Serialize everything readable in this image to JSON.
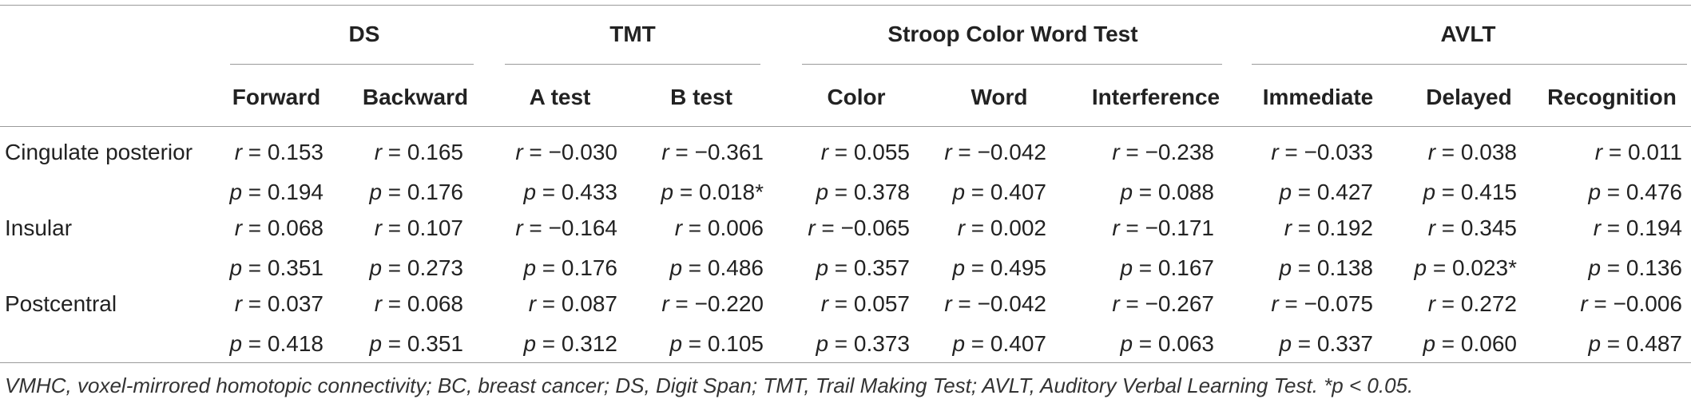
{
  "table": {
    "groups": [
      "DS",
      "TMT",
      "Stroop Color Word Test",
      "AVLT"
    ],
    "columns": [
      "Forward",
      "Backward",
      "A test",
      "B test",
      "Color",
      "Word",
      "Interference",
      "Immediate",
      "Delayed",
      "Recognition"
    ],
    "rows": [
      {
        "label": "Cingulate posterior",
        "r": [
          "0.153",
          "0.165",
          "−0.030",
          "−0.361",
          "0.055",
          "−0.042",
          "−0.238",
          "−0.033",
          "0.038",
          "0.011"
        ],
        "p": [
          "0.194",
          "0.176",
          "0.433",
          "0.018*",
          "0.378",
          "0.407",
          "0.088",
          "0.427",
          "0.415",
          "0.476"
        ]
      },
      {
        "label": "Insular",
        "r": [
          "0.068",
          "0.107",
          "−0.164",
          "0.006",
          "−0.065",
          "0.002",
          "−0.171",
          "0.192",
          "0.345",
          "0.194"
        ],
        "p": [
          "0.351",
          "0.273",
          "0.176",
          "0.486",
          "0.357",
          "0.495",
          "0.167",
          "0.138",
          "0.023*",
          "0.136"
        ]
      },
      {
        "label": "Postcentral",
        "r": [
          "0.037",
          "0.068",
          "0.087",
          "−0.220",
          "0.057",
          "−0.042",
          "−0.267",
          "−0.075",
          "0.272",
          "−0.006"
        ],
        "p": [
          "0.418",
          "0.351",
          "0.312",
          "0.105",
          "0.373",
          "0.407",
          "0.063",
          "0.337",
          "0.060",
          "0.487"
        ]
      }
    ],
    "footnote": "VMHC, voxel-mirrored homotopic connectivity; BC, breast cancer; DS, Digit Span; TMT, Trail Making Test; AVLT, Auditory Verbal Learning Test. *p < 0.05."
  }
}
